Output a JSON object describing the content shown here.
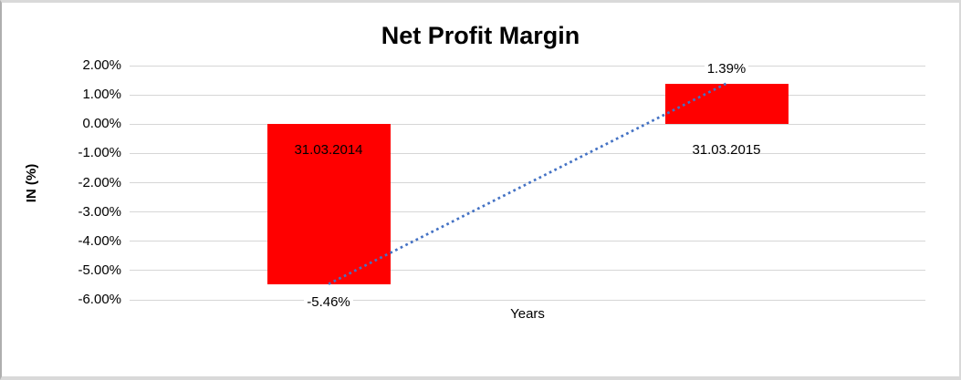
{
  "chart_data": {
    "type": "bar",
    "title": "Net Profit Margin",
    "xlabel": "Years",
    "ylabel": "IN (%)",
    "categories": [
      "31.03.2014",
      "31.03.2015"
    ],
    "values": [
      -5.46,
      1.39
    ],
    "value_labels": [
      "-5.46%",
      "1.39%"
    ],
    "ylim": [
      -6,
      2
    ],
    "ytick_labels": [
      "2.00%",
      "1.00%",
      "0.00%",
      "-1.00%",
      "-2.00%",
      "-3.00%",
      "-4.00%",
      "-5.00%",
      "-6.00%"
    ],
    "grid": true,
    "legend": false,
    "bar_color": "#ff0000",
    "gridline_color": "#d6d6d6",
    "trendline": {
      "type": "linear",
      "style": "dotted",
      "color": "#4472c4"
    }
  }
}
